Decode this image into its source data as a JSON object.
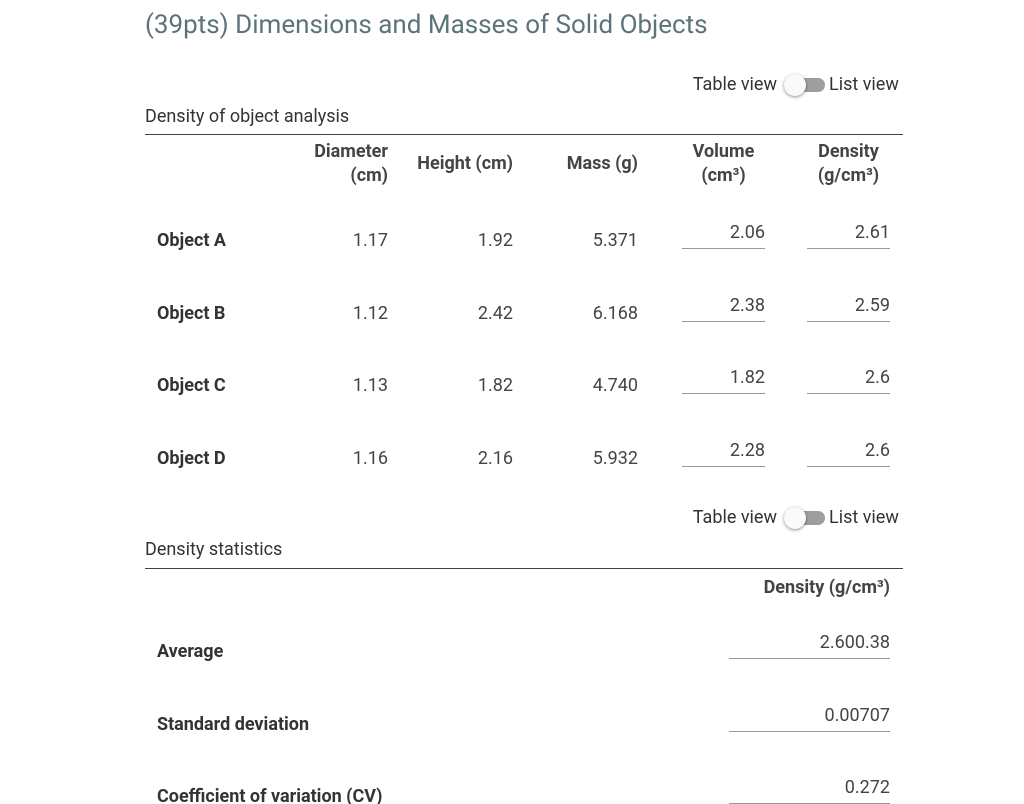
{
  "header": {
    "title": "(39pts) Dimensions and Masses of Solid Objects"
  },
  "analysis": {
    "toggle": {
      "left": "Table view",
      "right": "List view"
    },
    "caption": "Density of object analysis",
    "columns": [
      "Diameter (cm)",
      "Height (cm)",
      "Mass (g)",
      "Volume (cm³)",
      "Density (g/cm³)"
    ],
    "rows": [
      {
        "label": "Object A",
        "cells": [
          "1.17",
          "1.92",
          "5.371",
          "2.06",
          "2.61"
        ]
      },
      {
        "label": "Object B",
        "cells": [
          "1.12",
          "2.42",
          "6.168",
          "2.38",
          "2.59"
        ]
      },
      {
        "label": "Object C",
        "cells": [
          "1.13",
          "1.82",
          "4.740",
          "1.82",
          "2.6"
        ]
      },
      {
        "label": "Object D",
        "cells": [
          "1.16",
          "2.16",
          "5.932",
          "2.28",
          "2.6"
        ]
      }
    ]
  },
  "statistics": {
    "toggle": {
      "left": "Table view",
      "right": "List view"
    },
    "caption": "Density statistics",
    "column": "Density (g/cm³)",
    "rows": [
      {
        "label": "Average",
        "value": "2.600.38"
      },
      {
        "label": "Standard deviation",
        "value": "0.00707"
      },
      {
        "label": "Coefficient of variation (CV)",
        "value": "0.272"
      }
    ]
  }
}
